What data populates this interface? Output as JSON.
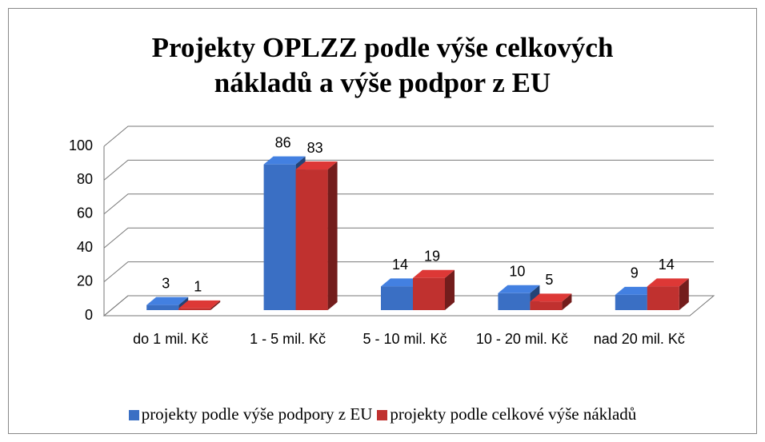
{
  "chart_data": {
    "type": "bar3d",
    "title": "Projekty OPLZZ podle výše celkových nákladů a výše podpor z EU",
    "categories": [
      "do 1 mil. Kč",
      "1 - 5 mil. Kč",
      "5 - 10 mil. Kč",
      "10 - 20 mil. Kč",
      "nad 20 mil. Kč"
    ],
    "series": [
      {
        "name": "projekty podle výše podpory z EU",
        "color": "#3a6fc4",
        "values": [
          3,
          86,
          14,
          10,
          9
        ]
      },
      {
        "name": "projekty podle celkové výše nákladů",
        "color": "#c0312f",
        "values": [
          1,
          83,
          19,
          5,
          14
        ]
      }
    ],
    "ylim": [
      0,
      100
    ],
    "yticks": [
      0,
      20,
      40,
      60,
      80,
      100
    ],
    "grid": true,
    "legend": "bottom"
  }
}
